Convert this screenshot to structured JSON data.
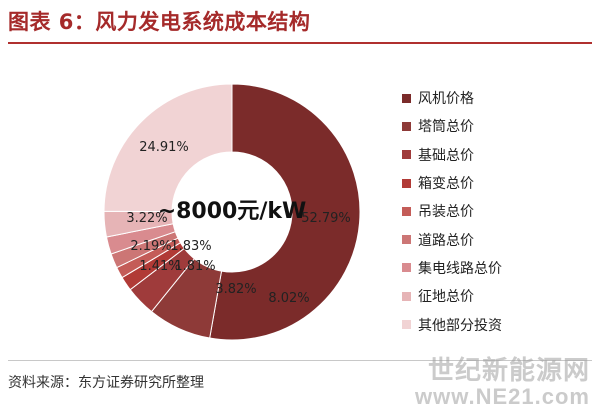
{
  "figure": {
    "title": "图表 6：风力发电系统成本结构",
    "source": "资料来源：东方证券研究所整理",
    "watermark_line1": "世纪新能源网",
    "watermark_line2": "www.NE21.com"
  },
  "chart_data": {
    "type": "pie",
    "donut": true,
    "center_label": "~8000元/kW",
    "legend_position": "right",
    "categories": [
      "风机价格",
      "塔筒总价",
      "基础总价",
      "箱变总价",
      "吊装总价",
      "道路总价",
      "集电线路总价",
      "征地总价",
      "其他部分投资"
    ],
    "values": [
      52.79,
      8.02,
      3.82,
      1.81,
      1.41,
      1.83,
      2.19,
      3.22,
      24.91
    ],
    "labels": [
      "52.79%",
      "8.02%",
      "3.82%",
      "1.81%",
      "1.41%",
      "1.83%",
      "2.19%",
      "3.22%",
      "24.91%"
    ],
    "colors": [
      "#7b2b2a",
      "#8e3a38",
      "#9f3b3b",
      "#b13a36",
      "#c45c58",
      "#cc7675",
      "#d98b8f",
      "#e6b4b6",
      "#f1d3d4"
    ]
  }
}
